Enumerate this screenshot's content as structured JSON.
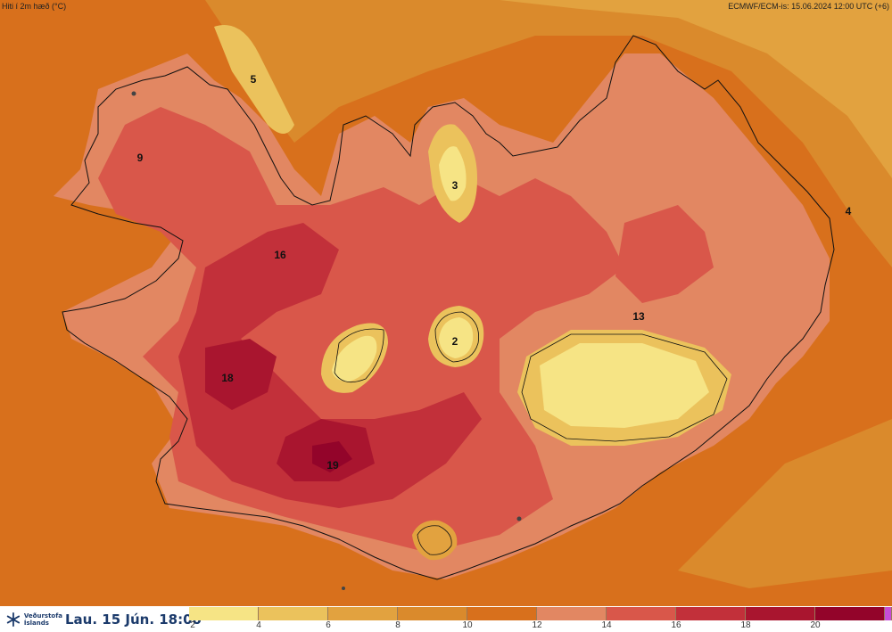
{
  "header": {
    "title": "Hiti í 2m hæð (°C)",
    "model_info": "ECMWF/ECM-is: 15.06.2024 12:00 UTC (+6)"
  },
  "map_values": [
    "5",
    "9",
    "3",
    "4",
    "16",
    "2",
    "13",
    "18",
    "19"
  ],
  "footer": {
    "logo_line1": "Veðurstofa",
    "logo_line2": "Íslands",
    "date_label": "Lau. 15 Jún. 18:00"
  },
  "legend": {
    "colors": [
      "#f6e485",
      "#ebc25c",
      "#e2a23f",
      "#da8a2c",
      "#d8701c",
      "#e28762",
      "#d9574a",
      "#c2303a",
      "#a9152f",
      "#93042a",
      "#c64dd6"
    ],
    "ticks": [
      "2",
      "4",
      "6",
      "8",
      "10",
      "12",
      "14",
      "16",
      "18",
      "20"
    ]
  }
}
